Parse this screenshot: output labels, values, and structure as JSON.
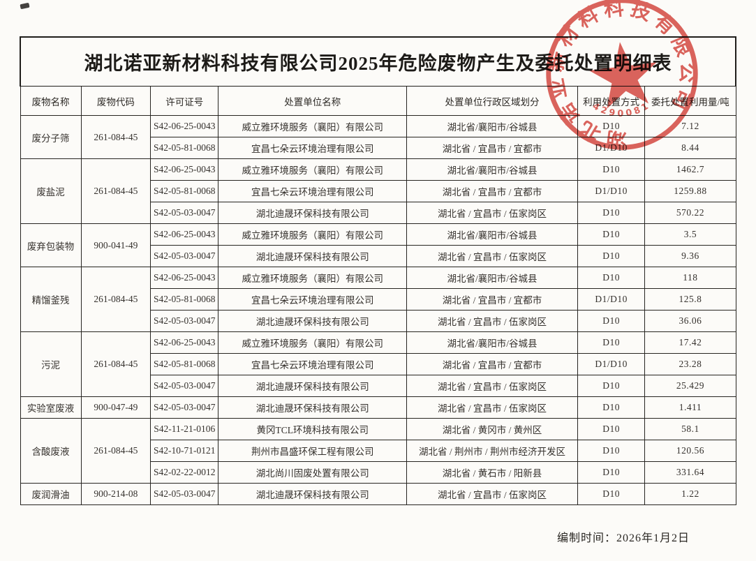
{
  "page": {
    "title": "湖北诺亚新材料科技有限公司2025年危险废物产生及委托处置明细表",
    "footer_label": "编制时间：2026年1月2日"
  },
  "table": {
    "headers": [
      "废物名称",
      "废物代码",
      "许可证号",
      "处置单位名称",
      "处置单位行政区域划分",
      "利用处置方式",
      "委托处置利用量/吨"
    ],
    "groups": [
      {
        "name": "废分子筛",
        "code": "261-084-45",
        "rows": [
          {
            "license": "S42-06-25-0043",
            "company": "威立雅环境服务（襄阳）有限公司",
            "region": "湖北省/襄阳市/谷城县",
            "method": "D10",
            "quantity": "7.12"
          },
          {
            "license": "S42-05-81-0068",
            "company": "宜昌七朵云环境治理有限公司",
            "region": "湖北省 / 宜昌市 / 宜都市",
            "method": "D1/D10",
            "quantity": "8.44"
          }
        ]
      },
      {
        "name": "废盐泥",
        "code": "261-084-45",
        "rows": [
          {
            "license": "S42-06-25-0043",
            "company": "威立雅环境服务（襄阳）有限公司",
            "region": "湖北省/襄阳市/谷城县",
            "method": "D10",
            "quantity": "1462.7"
          },
          {
            "license": "S42-05-81-0068",
            "company": "宜昌七朵云环境治理有限公司",
            "region": "湖北省 / 宜昌市 / 宜都市",
            "method": "D1/D10",
            "quantity": "1259.88"
          },
          {
            "license": "S42-05-03-0047",
            "company": "湖北迪晟环保科技有限公司",
            "region": "湖北省 / 宜昌市 / 伍家岗区",
            "method": "D10",
            "quantity": "570.22"
          }
        ]
      },
      {
        "name": "废弃包装物",
        "code": "900-041-49",
        "rows": [
          {
            "license": "S42-06-25-0043",
            "company": "威立雅环境服务（襄阳）有限公司",
            "region": "湖北省/襄阳市/谷城县",
            "method": "D10",
            "quantity": "3.5"
          },
          {
            "license": "S42-05-03-0047",
            "company": "湖北迪晟环保科技有限公司",
            "region": "湖北省 / 宜昌市 / 伍家岗区",
            "method": "D10",
            "quantity": "9.36"
          }
        ]
      },
      {
        "name": "精馏釜残",
        "code": "261-084-45",
        "rows": [
          {
            "license": "S42-06-25-0043",
            "company": "威立雅环境服务（襄阳）有限公司",
            "region": "湖北省/襄阳市/谷城县",
            "method": "D10",
            "quantity": "118"
          },
          {
            "license": "S42-05-81-0068",
            "company": "宜昌七朵云环境治理有限公司",
            "region": "湖北省 / 宜昌市 / 宜都市",
            "method": "D1/D10",
            "quantity": "125.8"
          },
          {
            "license": "S42-05-03-0047",
            "company": "湖北迪晟环保科技有限公司",
            "region": "湖北省 / 宜昌市 / 伍家岗区",
            "method": "D10",
            "quantity": "36.06"
          }
        ]
      },
      {
        "name": "污泥",
        "code": "261-084-45",
        "rows": [
          {
            "license": "S42-06-25-0043",
            "company": "威立雅环境服务（襄阳）有限公司",
            "region": "湖北省/襄阳市/谷城县",
            "method": "D10",
            "quantity": "17.42"
          },
          {
            "license": "S42-05-81-0068",
            "company": "宜昌七朵云环境治理有限公司",
            "region": "湖北省 / 宜昌市 / 宜都市",
            "method": "D1/D10",
            "quantity": "23.28"
          },
          {
            "license": "S42-05-03-0047",
            "company": "湖北迪晟环保科技有限公司",
            "region": "湖北省 / 宜昌市 / 伍家岗区",
            "method": "D10",
            "quantity": "25.429"
          }
        ]
      },
      {
        "name": "实验室废液",
        "code": "900-047-49",
        "rows": [
          {
            "license": "S42-05-03-0047",
            "company": "湖北迪晟环保科技有限公司",
            "region": "湖北省 / 宜昌市 / 伍家岗区",
            "method": "D10",
            "quantity": "1.411"
          }
        ]
      },
      {
        "name": "含酸废液",
        "code": "261-084-45",
        "rows": [
          {
            "license": "S42-11-21-0106",
            "company": "黄冈TCL环境科技有限公司",
            "region": "湖北省 / 黄冈市 / 黄州区",
            "method": "D10",
            "quantity": "58.1"
          },
          {
            "license": "S42-10-71-0121",
            "company": "荆州市昌盛环保工程有限公司",
            "region": "湖北省 / 荆州市 / 荆州市经济开发区",
            "method": "D10",
            "quantity": "120.56"
          },
          {
            "license": "S42-02-22-0012",
            "company": "湖北尚川固废处置有限公司",
            "region": "湖北省 / 黄石市 / 阳新县",
            "method": "D10",
            "quantity": "331.64"
          }
        ]
      },
      {
        "name": "废润滑油",
        "code": "900-214-08",
        "rows": [
          {
            "license": "S42-05-03-0047",
            "company": "湖北迪晟环保科技有限公司",
            "region": "湖北省 / 宜昌市 / 伍家岗区",
            "method": "D10",
            "quantity": "1.22"
          }
        ]
      }
    ]
  },
  "stamp": {
    "company": "湖北诺亚新材料科技有限公司",
    "serial": "4290081",
    "ink_color": "#d5423a"
  }
}
